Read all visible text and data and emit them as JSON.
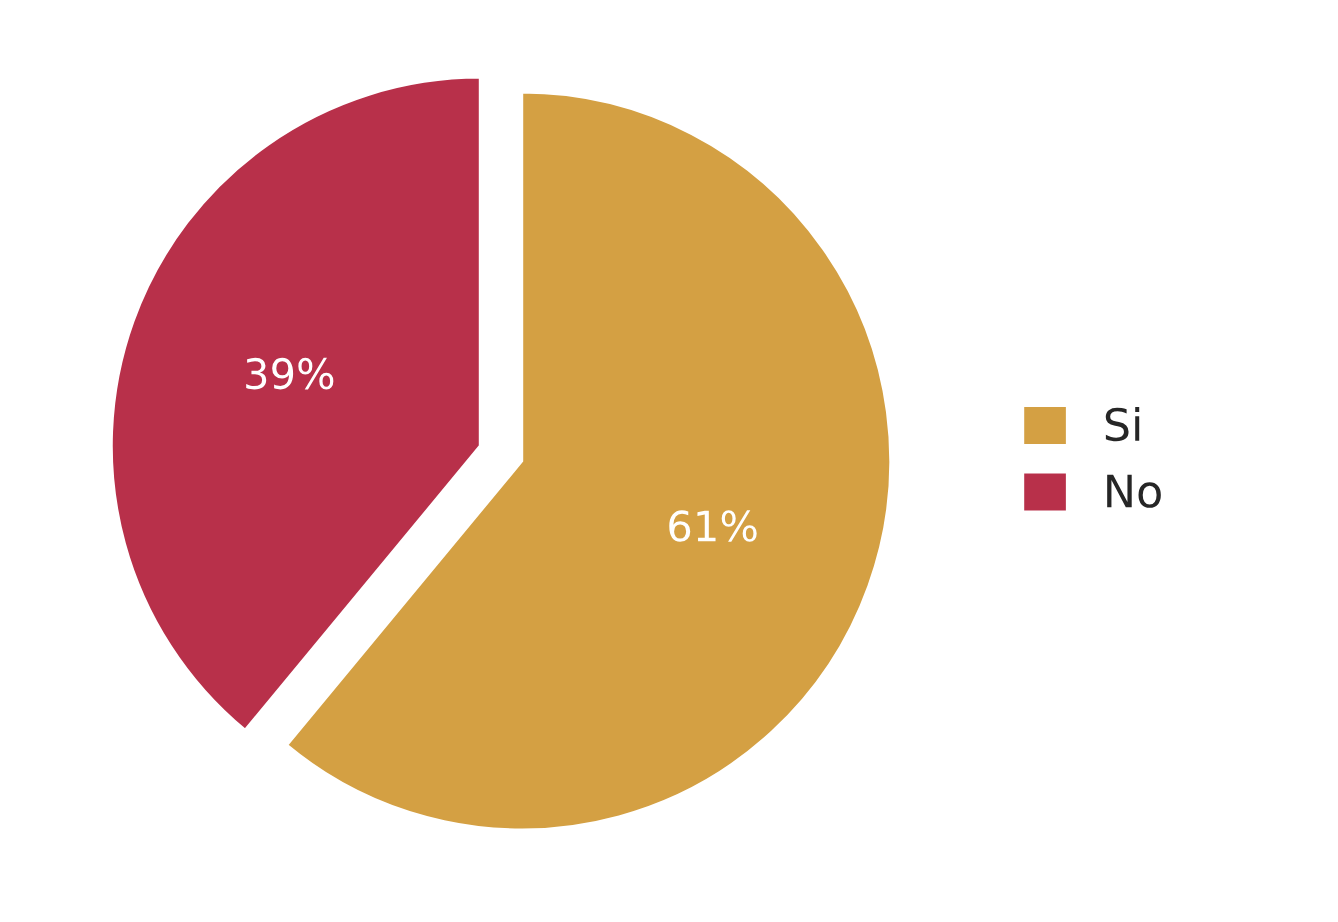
{
  "chart_data": {
    "type": "pie",
    "categories": [
      "Si",
      "No"
    ],
    "values": [
      61,
      39
    ],
    "value_labels": [
      "61%",
      "39%"
    ],
    "colors": [
      "#d4a043",
      "#b8304a"
    ],
    "legend": "right"
  }
}
